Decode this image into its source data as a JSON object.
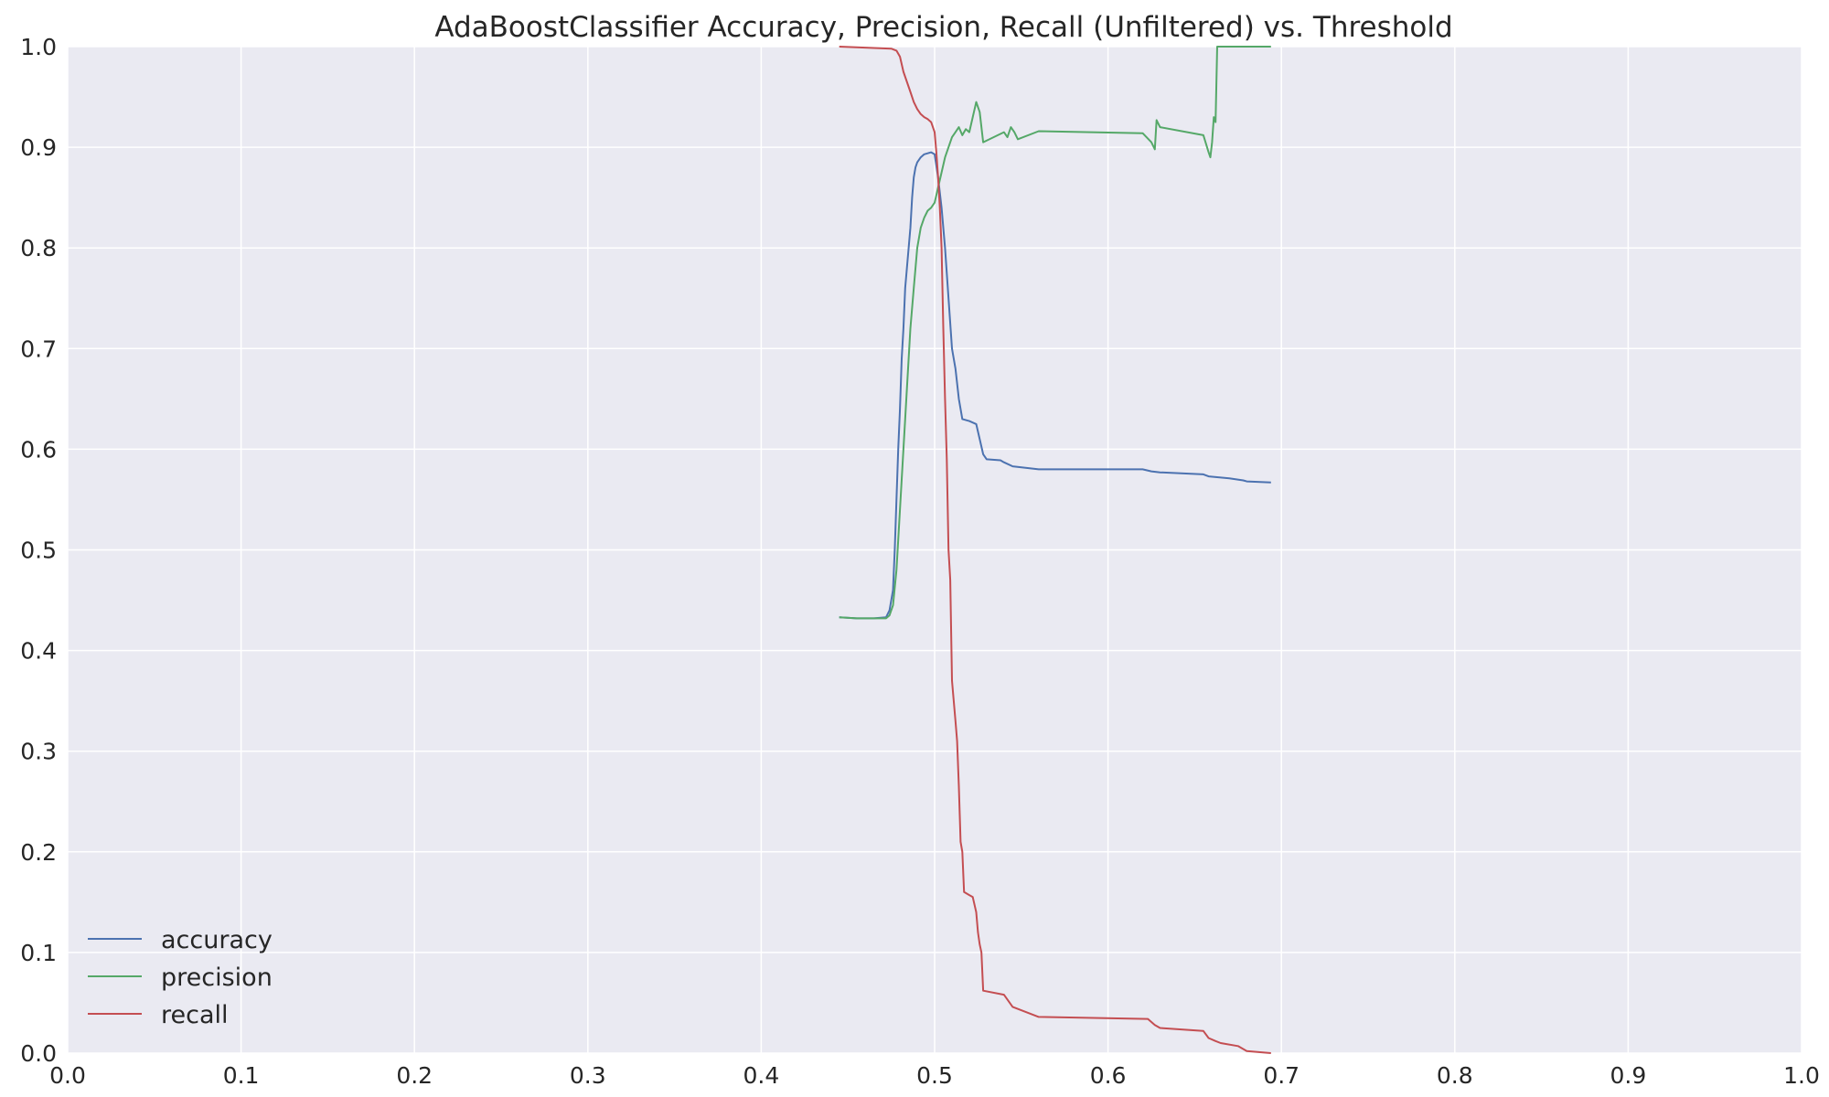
{
  "chart_data": {
    "type": "line",
    "title": "AdaBoostClassifier Accuracy, Precision, Recall (Unfiltered) vs. Threshold",
    "xlabel": "",
    "ylabel": "",
    "xlim": [
      0.0,
      1.0
    ],
    "ylim": [
      0.0,
      1.0
    ],
    "x_ticks": [
      "0.0",
      "0.1",
      "0.2",
      "0.3",
      "0.4",
      "0.5",
      "0.6",
      "0.7",
      "0.8",
      "0.9",
      "1.0"
    ],
    "y_ticks": [
      "0.0",
      "0.1",
      "0.2",
      "0.3",
      "0.4",
      "0.5",
      "0.6",
      "0.7",
      "0.8",
      "0.9",
      "1.0"
    ],
    "grid": true,
    "legend_position": "lower-left",
    "background_color": "#eaeaf2",
    "grid_color": "#ffffff",
    "series": [
      {
        "name": "accuracy",
        "color": "#4c72b0",
        "points": [
          [
            0.445,
            0.433
          ],
          [
            0.455,
            0.432
          ],
          [
            0.465,
            0.432
          ],
          [
            0.472,
            0.433
          ],
          [
            0.474,
            0.44
          ],
          [
            0.476,
            0.46
          ],
          [
            0.477,
            0.5
          ],
          [
            0.478,
            0.55
          ],
          [
            0.479,
            0.6
          ],
          [
            0.48,
            0.64
          ],
          [
            0.481,
            0.69
          ],
          [
            0.482,
            0.72
          ],
          [
            0.483,
            0.76
          ],
          [
            0.484,
            0.78
          ],
          [
            0.485,
            0.8
          ],
          [
            0.486,
            0.82
          ],
          [
            0.487,
            0.85
          ],
          [
            0.488,
            0.87
          ],
          [
            0.489,
            0.88
          ],
          [
            0.49,
            0.885
          ],
          [
            0.492,
            0.89
          ],
          [
            0.494,
            0.893
          ],
          [
            0.496,
            0.894
          ],
          [
            0.498,
            0.895
          ],
          [
            0.5,
            0.893
          ],
          [
            0.502,
            0.87
          ],
          [
            0.504,
            0.84
          ],
          [
            0.506,
            0.8
          ],
          [
            0.508,
            0.75
          ],
          [
            0.51,
            0.7
          ],
          [
            0.512,
            0.68
          ],
          [
            0.514,
            0.65
          ],
          [
            0.516,
            0.63
          ],
          [
            0.52,
            0.628
          ],
          [
            0.524,
            0.625
          ],
          [
            0.526,
            0.61
          ],
          [
            0.528,
            0.595
          ],
          [
            0.53,
            0.59
          ],
          [
            0.538,
            0.589
          ],
          [
            0.54,
            0.587
          ],
          [
            0.545,
            0.583
          ],
          [
            0.56,
            0.58
          ],
          [
            0.62,
            0.58
          ],
          [
            0.625,
            0.578
          ],
          [
            0.63,
            0.577
          ],
          [
            0.655,
            0.575
          ],
          [
            0.658,
            0.573
          ],
          [
            0.67,
            0.571
          ],
          [
            0.678,
            0.569
          ],
          [
            0.68,
            0.568
          ],
          [
            0.694,
            0.567
          ]
        ]
      },
      {
        "name": "precision",
        "color": "#55a868",
        "points": [
          [
            0.445,
            0.433
          ],
          [
            0.455,
            0.432
          ],
          [
            0.465,
            0.432
          ],
          [
            0.472,
            0.432
          ],
          [
            0.474,
            0.435
          ],
          [
            0.476,
            0.445
          ],
          [
            0.478,
            0.48
          ],
          [
            0.479,
            0.51
          ],
          [
            0.48,
            0.54
          ],
          [
            0.481,
            0.57
          ],
          [
            0.482,
            0.6
          ],
          [
            0.483,
            0.63
          ],
          [
            0.484,
            0.66
          ],
          [
            0.485,
            0.69
          ],
          [
            0.486,
            0.72
          ],
          [
            0.488,
            0.76
          ],
          [
            0.49,
            0.8
          ],
          [
            0.492,
            0.82
          ],
          [
            0.494,
            0.83
          ],
          [
            0.496,
            0.837
          ],
          [
            0.498,
            0.84
          ],
          [
            0.5,
            0.845
          ],
          [
            0.502,
            0.86
          ],
          [
            0.504,
            0.875
          ],
          [
            0.506,
            0.89
          ],
          [
            0.508,
            0.9
          ],
          [
            0.51,
            0.91
          ],
          [
            0.512,
            0.915
          ],
          [
            0.514,
            0.92
          ],
          [
            0.516,
            0.912
          ],
          [
            0.518,
            0.918
          ],
          [
            0.52,
            0.915
          ],
          [
            0.522,
            0.93
          ],
          [
            0.524,
            0.945
          ],
          [
            0.525,
            0.94
          ],
          [
            0.526,
            0.935
          ],
          [
            0.528,
            0.905
          ],
          [
            0.54,
            0.915
          ],
          [
            0.542,
            0.91
          ],
          [
            0.544,
            0.92
          ],
          [
            0.546,
            0.915
          ],
          [
            0.548,
            0.908
          ],
          [
            0.56,
            0.916
          ],
          [
            0.62,
            0.914
          ],
          [
            0.625,
            0.905
          ],
          [
            0.627,
            0.898
          ],
          [
            0.628,
            0.927
          ],
          [
            0.63,
            0.92
          ],
          [
            0.655,
            0.912
          ],
          [
            0.658,
            0.895
          ],
          [
            0.659,
            0.89
          ],
          [
            0.66,
            0.905
          ],
          [
            0.661,
            0.93
          ],
          [
            0.662,
            0.925
          ],
          [
            0.663,
            1.0
          ],
          [
            0.694,
            1.0
          ]
        ]
      },
      {
        "name": "recall",
        "color": "#c44e52",
        "points": [
          [
            0.445,
            1.0
          ],
          [
            0.46,
            0.999
          ],
          [
            0.475,
            0.998
          ],
          [
            0.478,
            0.996
          ],
          [
            0.48,
            0.99
          ],
          [
            0.482,
            0.975
          ],
          [
            0.484,
            0.965
          ],
          [
            0.486,
            0.955
          ],
          [
            0.488,
            0.945
          ],
          [
            0.49,
            0.938
          ],
          [
            0.492,
            0.933
          ],
          [
            0.494,
            0.93
          ],
          [
            0.496,
            0.928
          ],
          [
            0.498,
            0.925
          ],
          [
            0.5,
            0.915
          ],
          [
            0.501,
            0.895
          ],
          [
            0.502,
            0.87
          ],
          [
            0.503,
            0.84
          ],
          [
            0.504,
            0.8
          ],
          [
            0.505,
            0.72
          ],
          [
            0.506,
            0.65
          ],
          [
            0.507,
            0.59
          ],
          [
            0.508,
            0.5
          ],
          [
            0.509,
            0.47
          ],
          [
            0.51,
            0.37
          ],
          [
            0.511,
            0.35
          ],
          [
            0.512,
            0.33
          ],
          [
            0.513,
            0.31
          ],
          [
            0.514,
            0.265
          ],
          [
            0.515,
            0.21
          ],
          [
            0.516,
            0.2
          ],
          [
            0.517,
            0.16
          ],
          [
            0.52,
            0.157
          ],
          [
            0.522,
            0.155
          ],
          [
            0.524,
            0.14
          ],
          [
            0.525,
            0.12
          ],
          [
            0.526,
            0.108
          ],
          [
            0.527,
            0.1
          ],
          [
            0.528,
            0.062
          ],
          [
            0.54,
            0.058
          ],
          [
            0.545,
            0.046
          ],
          [
            0.56,
            0.036
          ],
          [
            0.623,
            0.034
          ],
          [
            0.627,
            0.028
          ],
          [
            0.63,
            0.025
          ],
          [
            0.655,
            0.022
          ],
          [
            0.658,
            0.015
          ],
          [
            0.662,
            0.012
          ],
          [
            0.665,
            0.01
          ],
          [
            0.675,
            0.007
          ],
          [
            0.68,
            0.002
          ],
          [
            0.694,
            0.0
          ]
        ]
      }
    ]
  }
}
